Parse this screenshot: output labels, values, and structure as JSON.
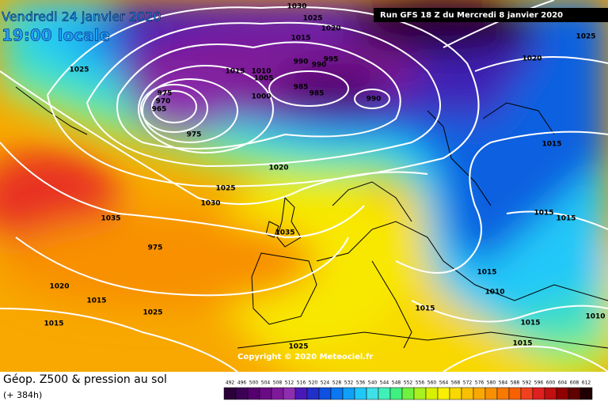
{
  "header": {
    "date": "Vendredi 24 janvier 2020",
    "time": "19:00 locale",
    "run": "Run GFS 18 Z du Mercredi 8 janvier 2020"
  },
  "copyright": "Copyright © 2020 Meteociel.fr",
  "footer": {
    "title": "Géop. Z500 & pression au sol",
    "lead": "(+ 384h)"
  },
  "isobar_labels": [
    1030,
    1025,
    1020,
    1015,
    1025,
    1015,
    1010,
    1005,
    990,
    990,
    995,
    975,
    970,
    965,
    975,
    1000,
    985,
    985,
    990,
    1020,
    1025,
    1030,
    1035,
    1035,
    975,
    1020,
    1015,
    1025,
    1015,
    1025,
    1015,
    1010,
    1015,
    1015,
    1015,
    1010,
    1015,
    1015,
    1015,
    1020,
    1025
  ],
  "scale": {
    "labels": [
      492,
      496,
      500,
      504,
      508,
      512,
      516,
      520,
      524,
      528,
      532,
      536,
      540,
      544,
      548,
      552,
      556,
      560,
      564,
      568,
      572,
      576,
      580,
      584,
      588,
      592,
      596,
      600,
      604,
      608,
      612
    ],
    "colors": [
      "#2a0038",
      "#3c0055",
      "#55006e",
      "#6a0a85",
      "#7e1a9a",
      "#8e2db0",
      "#4a18b8",
      "#2030c8",
      "#1050e0",
      "#0a78f0",
      "#10a0f8",
      "#20c8f8",
      "#40e0e8",
      "#40f0b8",
      "#40f080",
      "#70f040",
      "#a8f020",
      "#d8f000",
      "#f8f000",
      "#f8d800",
      "#f8c000",
      "#f8a800",
      "#f89000",
      "#f87800",
      "#f86000",
      "#f04020",
      "#e02020",
      "#c01010",
      "#900000",
      "#600000",
      "#200000"
    ]
  }
}
